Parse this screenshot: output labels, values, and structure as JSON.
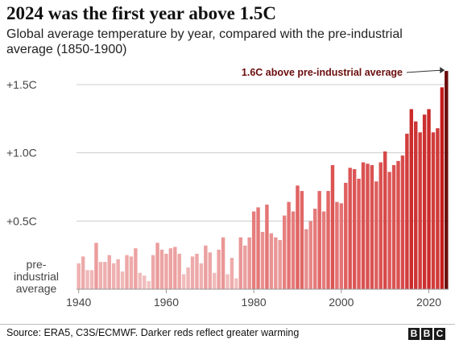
{
  "header": {
    "title": "2024 was the first year above 1.5C",
    "subtitle": "Global average temperature by year, compared with the pre-industrial average (1850-1900)"
  },
  "footer": {
    "source": "Source: ERA5, C3S/ECMWF. Darker reds reflect greater warming",
    "logo_letters": [
      "B",
      "B",
      "C"
    ]
  },
  "colors": {
    "low": "#f2c4c4",
    "mid": "#e06060",
    "high": "#c41a1a",
    "top": "#6b0d0d",
    "grid": "#cccccc",
    "axis": "#999999"
  },
  "chart_data": {
    "type": "bar",
    "title": "2024 was the first year above 1.5C",
    "ylim": [
      0,
      1.6
    ],
    "xlim": [
      1940,
      2024
    ],
    "grid": true,
    "y_ticks": [
      {
        "value": 0,
        "label": "pre-\nindustrial\naverage"
      },
      {
        "value": 0.5,
        "label": "+0.5C"
      },
      {
        "value": 1.0,
        "label": "+1.0C"
      },
      {
        "value": 1.5,
        "label": "+1.5C"
      }
    ],
    "x_ticks": [
      {
        "value": 1940,
        "label": "1940"
      },
      {
        "value": 1960,
        "label": "1960"
      },
      {
        "value": 1980,
        "label": "1980"
      },
      {
        "value": 2000,
        "label": "2000"
      },
      {
        "value": 2020,
        "label": "2020"
      }
    ],
    "annotation": {
      "text": "1.6C above pre-industrial average",
      "year": 2024,
      "value": 1.6
    },
    "series": [
      {
        "x": [
          1940,
          1941,
          1942,
          1943,
          1944,
          1945,
          1946,
          1947,
          1948,
          1949,
          1950,
          1951,
          1952,
          1953,
          1954,
          1955,
          1956,
          1957,
          1958,
          1959,
          1960,
          1961,
          1962,
          1963,
          1964,
          1965,
          1966,
          1967,
          1968,
          1969,
          1970,
          1971,
          1972,
          1973,
          1974,
          1975,
          1976,
          1977,
          1978,
          1979,
          1980,
          1981,
          1982,
          1983,
          1984,
          1985,
          1986,
          1987,
          1988,
          1989,
          1990,
          1991,
          1992,
          1993,
          1994,
          1995,
          1996,
          1997,
          1998,
          1999,
          2000,
          2001,
          2002,
          2003,
          2004,
          2005,
          2006,
          2007,
          2008,
          2009,
          2010,
          2011,
          2012,
          2013,
          2014,
          2015,
          2016,
          2017,
          2018,
          2019,
          2020,
          2021,
          2022,
          2023,
          2024
        ],
        "values": [
          0.19,
          0.24,
          0.14,
          0.14,
          0.34,
          0.2,
          0.2,
          0.25,
          0.19,
          0.22,
          0.13,
          0.25,
          0.24,
          0.3,
          0.12,
          0.1,
          0.06,
          0.25,
          0.34,
          0.29,
          0.26,
          0.3,
          0.31,
          0.26,
          0.11,
          0.16,
          0.24,
          0.26,
          0.19,
          0.32,
          0.27,
          0.12,
          0.29,
          0.38,
          0.11,
          0.23,
          0.08,
          0.38,
          0.32,
          0.38,
          0.57,
          0.6,
          0.42,
          0.62,
          0.41,
          0.38,
          0.36,
          0.54,
          0.64,
          0.57,
          0.76,
          0.72,
          0.44,
          0.5,
          0.59,
          0.72,
          0.57,
          0.72,
          0.91,
          0.64,
          0.63,
          0.78,
          0.89,
          0.88,
          0.81,
          0.93,
          0.92,
          0.91,
          0.79,
          0.93,
          1.01,
          0.86,
          0.91,
          0.94,
          0.98,
          1.14,
          1.32,
          1.23,
          1.15,
          1.28,
          1.32,
          1.15,
          1.18,
          1.48,
          1.6
        ]
      }
    ]
  }
}
